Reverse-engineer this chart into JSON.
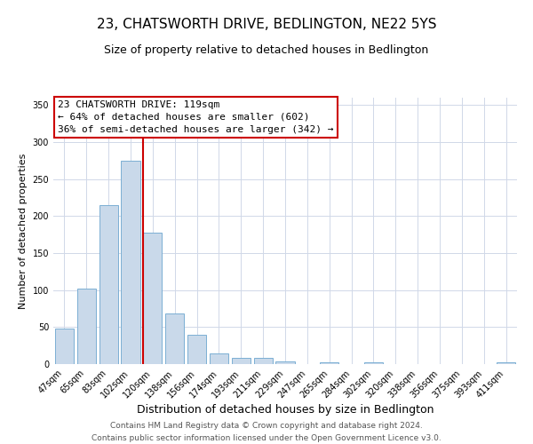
{
  "title": "23, CHATSWORTH DRIVE, BEDLINGTON, NE22 5YS",
  "subtitle": "Size of property relative to detached houses in Bedlington",
  "xlabel": "Distribution of detached houses by size in Bedlington",
  "ylabel": "Number of detached properties",
  "bar_labels": [
    "47sqm",
    "65sqm",
    "83sqm",
    "102sqm",
    "120sqm",
    "138sqm",
    "156sqm",
    "174sqm",
    "193sqm",
    "211sqm",
    "229sqm",
    "247sqm",
    "265sqm",
    "284sqm",
    "302sqm",
    "320sqm",
    "338sqm",
    "356sqm",
    "375sqm",
    "393sqm",
    "411sqm"
  ],
  "bar_values": [
    48,
    102,
    215,
    275,
    178,
    68,
    40,
    14,
    8,
    9,
    4,
    0,
    2,
    0,
    2,
    0,
    0,
    0,
    0,
    0,
    2
  ],
  "bar_color": "#c9d9ea",
  "bar_edge_color": "#7bafd4",
  "ylim": [
    0,
    360
  ],
  "yticks": [
    0,
    50,
    100,
    150,
    200,
    250,
    300,
    350
  ],
  "vline_index": 4,
  "vline_color": "#cc0000",
  "annotation_title": "23 CHATSWORTH DRIVE: 119sqm",
  "annotation_line1": "← 64% of detached houses are smaller (602)",
  "annotation_line2": "36% of semi-detached houses are larger (342) →",
  "annotation_box_color": "#ffffff",
  "annotation_box_edge": "#cc0000",
  "footer_line1": "Contains HM Land Registry data © Crown copyright and database right 2024.",
  "footer_line2": "Contains public sector information licensed under the Open Government Licence v3.0.",
  "bg_color": "#ffffff",
  "grid_color": "#d0d8e8",
  "title_fontsize": 11,
  "subtitle_fontsize": 9,
  "xlabel_fontsize": 9,
  "ylabel_fontsize": 8,
  "tick_fontsize": 7,
  "annotation_fontsize": 8,
  "footer_fontsize": 6.5
}
